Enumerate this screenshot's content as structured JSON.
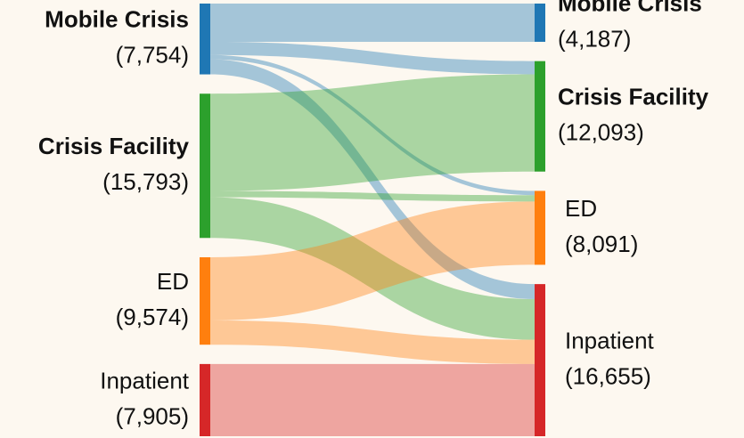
{
  "chart_data": {
    "type": "sankey",
    "sources": {
      "names": [
        "Mobile Crisis",
        "Crisis Facility",
        "ED",
        "Inpatient"
      ],
      "values": [
        7754,
        15793,
        9574,
        7905
      ],
      "value_labels": [
        "(7,754)",
        "(15,793)",
        "(9,574)",
        "(7,905)"
      ],
      "colors": [
        "#1f77b4",
        "#2ca02c",
        "#ff7f0e",
        "#d62728"
      ]
    },
    "targets": {
      "names": [
        "Mobile Crisis",
        "Crisis Facility",
        "ED",
        "Inpatient"
      ],
      "values": [
        4187,
        12093,
        8091,
        16655
      ],
      "value_labels": [
        "(4,187)",
        "(12,093)",
        "(8,091)",
        "(16,655)"
      ],
      "colors": [
        "#1f77b4",
        "#2ca02c",
        "#ff7f0e",
        "#d62728"
      ]
    },
    "links": [
      {
        "source": 0,
        "target": 0,
        "value": 4187
      },
      {
        "source": 0,
        "target": 1,
        "value": 1447
      },
      {
        "source": 0,
        "target": 2,
        "value": 470
      },
      {
        "source": 0,
        "target": 3,
        "value": 1650
      },
      {
        "source": 1,
        "target": 1,
        "value": 10646
      },
      {
        "source": 1,
        "target": 2,
        "value": 700
      },
      {
        "source": 1,
        "target": 3,
        "value": 4447
      },
      {
        "source": 2,
        "target": 2,
        "value": 6921
      },
      {
        "source": 2,
        "target": 3,
        "value": 2653
      },
      {
        "source": 3,
        "target": 3,
        "value": 7905
      }
    ]
  }
}
